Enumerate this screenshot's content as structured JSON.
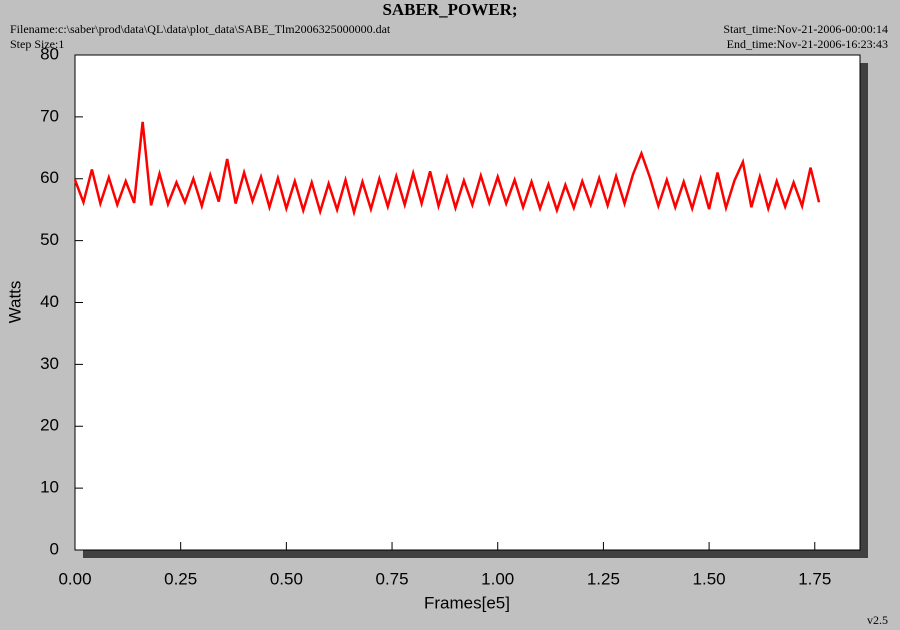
{
  "chart_data": {
    "type": "line",
    "title": "SABER_POWER;",
    "filename": "Filename:c:\\saber\\prod\\data\\QL\\data\\plot_data\\SABE_Tlm2006325000000.dat",
    "step_size": "Step Size:1",
    "start_time": "Start_time:Nov-21-2006-00:00:14",
    "end_time": "End_time:Nov-21-2006-16:23:43",
    "version": "v2.5",
    "x_label": "Frames[e5]",
    "y_label": "Watts",
    "color": "#ff0000",
    "xlim": [
      0,
      1.857
    ],
    "xticks": [
      {
        "value": 0,
        "label": "0.00"
      },
      0.25,
      {
        "value": 0.5,
        "label": "0.50"
      },
      0.75,
      {
        "value": 1,
        "label": "1.00"
      },
      1.25,
      {
        "value": 1.5,
        "label": "1.50"
      },
      1.75
    ],
    "ylim": [
      0,
      80
    ],
    "yticks": [
      0,
      10,
      20,
      30,
      40,
      50,
      60,
      70,
      80
    ],
    "x": [
      0,
      0.02,
      0.04,
      0.06,
      0.08,
      0.1,
      0.12,
      0.14,
      0.16,
      0.18,
      0.2,
      0.22,
      0.24,
      0.26,
      0.28,
      0.3,
      0.32,
      0.34,
      0.36,
      0.38,
      0.4,
      0.42,
      0.44,
      0.46,
      0.48,
      0.5,
      0.52,
      0.54,
      0.56,
      0.58,
      0.6,
      0.62,
      0.64,
      0.66,
      0.68,
      0.7,
      0.72,
      0.74,
      0.76,
      0.78,
      0.8,
      0.82,
      0.84,
      0.86,
      0.88,
      0.9,
      0.92,
      0.94,
      0.96,
      0.98,
      1,
      1.02,
      1.04,
      1.06,
      1.08,
      1.1,
      1.12,
      1.14,
      1.16,
      1.18,
      1.2,
      1.22,
      1.24,
      1.26,
      1.28,
      1.3,
      1.32,
      1.34,
      1.36,
      1.38,
      1.4,
      1.42,
      1.44,
      1.46,
      1.48,
      1.5,
      1.52,
      1.54,
      1.56,
      1.58,
      1.6,
      1.62,
      1.64,
      1.66,
      1.68,
      1.7,
      1.72,
      1.74,
      1.76
    ],
    "values": [
      59.8,
      56.2,
      61.5,
      56.0,
      60.2,
      55.8,
      59.6,
      56.1,
      69.2,
      55.7,
      60.8,
      55.9,
      59.4,
      56.2,
      60.0,
      55.6,
      60.6,
      56.3,
      63.2,
      56.0,
      61.0,
      56.4,
      60.3,
      55.4,
      60.1,
      55.2,
      59.6,
      54.9,
      59.4,
      54.7,
      59.2,
      55.0,
      59.8,
      54.6,
      59.5,
      55.1,
      60.0,
      55.5,
      60.4,
      55.8,
      60.9,
      56.0,
      61.2,
      55.6,
      60.2,
      55.3,
      59.7,
      55.8,
      60.5,
      56.1,
      60.3,
      56.0,
      59.8,
      55.4,
      59.5,
      55.2,
      59.1,
      54.9,
      59.0,
      55.3,
      59.6,
      55.8,
      60.1,
      55.7,
      60.4,
      56.0,
      60.7,
      64.1,
      60.2,
      55.6,
      59.8,
      55.4,
      59.5,
      55.2,
      60.0,
      55.1,
      61.0,
      55.3,
      59.7,
      62.7,
      55.4,
      60.3,
      55.2,
      59.6,
      55.5,
      59.4,
      55.6,
      61.8,
      56.2
    ]
  }
}
